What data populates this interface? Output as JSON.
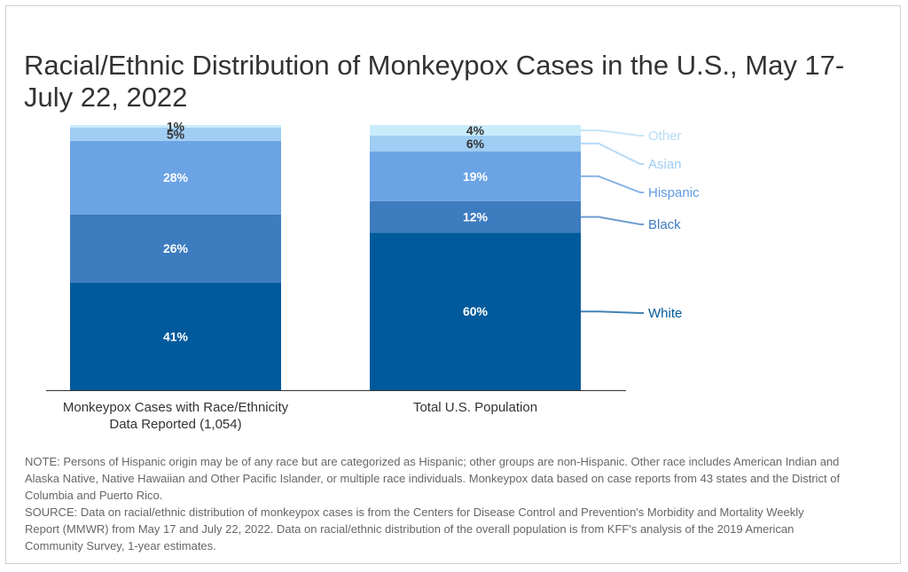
{
  "title": "Racial/Ethnic Distribution of Monkeypox Cases in the U.S., May 17- July 22, 2022",
  "notes": {
    "note": "NOTE: Persons of Hispanic origin may be of any race but are categorized as Hispanic; other groups are non-Hispanic. Other race includes American Indian and Alaska Native, Native Hawaiian and Other Pacific Islander, or multiple race individuals. Monkeypox data based on case reports from 43 states and the District of Columbia and Puerto Rico.",
    "source": "SOURCE: Data on racial/ethnic distribution of monkeypox cases is from the Centers for Disease Control and Prevention's Morbidity and Mortality Weekly Report (MMWR) from May 17 and July 22, 2022. Data on racial/ethnic distribution of the overall population is from KFF's analysis of the 2019 American Community Survey, 1-year estimates."
  },
  "chart_data": {
    "type": "bar",
    "stacked": true,
    "percent": true,
    "categories": [
      [
        "Monkeypox Cases with Race/Ethnicity",
        "Data Reported (1,054)"
      ],
      [
        "Total U.S. Population"
      ]
    ],
    "series": [
      {
        "name": "White",
        "values": [
          41,
          60
        ],
        "labels": [
          "41%",
          "60%"
        ],
        "color": "#005a9b",
        "label_color": "#005a9b",
        "text_color": "#ffffff"
      },
      {
        "name": "Black",
        "values": [
          26,
          12
        ],
        "labels": [
          "26%",
          "12%"
        ],
        "color": "#3d7cbf",
        "label_color": "#3d7cbf",
        "text_color": "#ffffff"
      },
      {
        "name": "Hispanic",
        "values": [
          28,
          19
        ],
        "labels": [
          "28%",
          "19%"
        ],
        "color": "#6ba3e4",
        "label_color": "#5f9ae0",
        "text_color": "#ffffff"
      },
      {
        "name": "Asian",
        "values": [
          5,
          6
        ],
        "labels": [
          "5%",
          "6%"
        ],
        "color": "#a0cdf4",
        "label_color": "#9ccbf2",
        "text_color": "#333333"
      },
      {
        "name": "Other",
        "values": [
          1,
          4
        ],
        "labels": [
          "1%",
          "4%"
        ],
        "color": "#c9ecfb",
        "label_color": "#b4ddf2",
        "text_color": "#333333"
      }
    ],
    "ylim": [
      0,
      100
    ],
    "legend": "right"
  }
}
